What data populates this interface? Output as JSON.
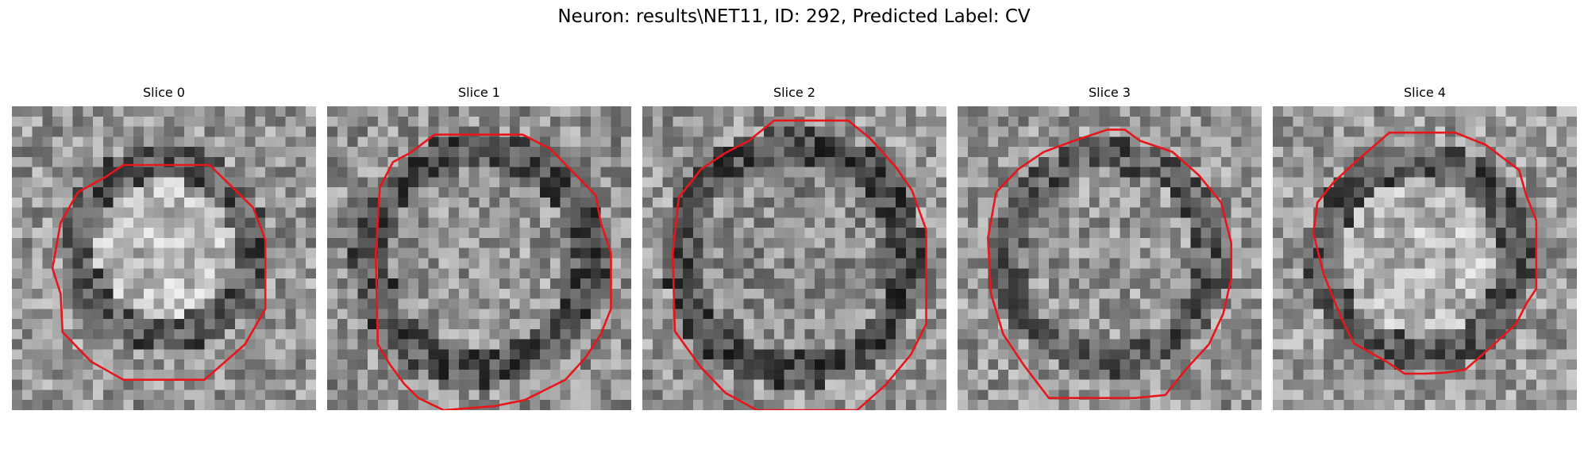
{
  "figure": {
    "suptitle": "Neuron: results\\NET11, ID: 292, Predicted Label: CV"
  },
  "panels": [
    {
      "title": "Slice 0"
    },
    {
      "title": "Slice 1"
    },
    {
      "title": "Slice 2"
    },
    {
      "title": "Slice 3"
    },
    {
      "title": "Slice 4"
    }
  ],
  "colors": {
    "contour": "#e8151b",
    "background": "#ffffff"
  }
}
